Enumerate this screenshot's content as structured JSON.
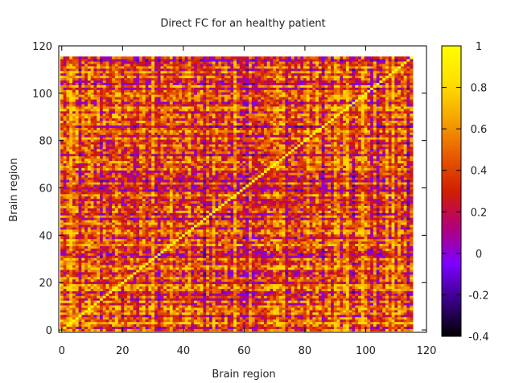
{
  "chart_data": {
    "type": "heatmap",
    "title": "Direct FC for an healthy patient",
    "xlabel": "Brain region",
    "ylabel": "Brain region",
    "n_regions": 116,
    "xlim": [
      -1,
      120
    ],
    "ylim": [
      -1,
      120
    ],
    "x_ticks": [
      0,
      20,
      40,
      60,
      80,
      100,
      120
    ],
    "y_ticks": [
      0,
      20,
      40,
      60,
      80,
      100,
      120
    ],
    "x_tick_labels": [
      "0",
      "20",
      "40",
      "60",
      "80",
      "100",
      "120"
    ],
    "y_tick_labels": [
      "0",
      "20",
      "40",
      "60",
      "80",
      "100",
      "120"
    ],
    "diagonal_value": 1,
    "typical_off_diagonal_range": [
      -0.2,
      0.8
    ],
    "colorbar": {
      "min": -0.4,
      "max": 1,
      "ticks": [
        -0.4,
        -0.2,
        0,
        0.2,
        0.4,
        0.6,
        0.8,
        1
      ],
      "tick_labels": [
        "-0.4",
        "-0.2",
        "0",
        "0.2",
        "0.4",
        "0.6",
        "0.8",
        "1"
      ],
      "colormap": [
        "#000000",
        "#3a0088",
        "#7d00ff",
        "#b3007a",
        "#d21e00",
        "#e85c00",
        "#f5a600",
        "#ffe000",
        "#ffff00"
      ]
    },
    "grid": false,
    "legend": "colorbar-right"
  }
}
